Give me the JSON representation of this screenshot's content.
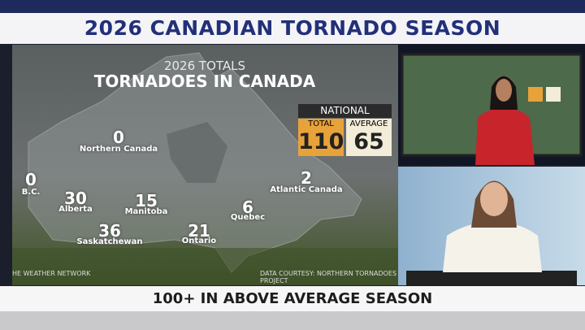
{
  "header": {
    "title": "2026 CANADIAN TORNADO SEASON"
  },
  "graphic": {
    "subtitle": "2026 TOTALS",
    "title": "TORNADOES IN CANADA",
    "national": {
      "label": "NATIONAL",
      "total_label": "TOTAL",
      "total": 110,
      "average_label": "AVERAGE",
      "average": 65
    },
    "regions": [
      {
        "name": "Northern Canada",
        "count": 0
      },
      {
        "name": "B.C.",
        "count": 0
      },
      {
        "name": "Alberta",
        "count": 30
      },
      {
        "name": "Saskatchewan",
        "count": 36
      },
      {
        "name": "Manitoba",
        "count": 15
      },
      {
        "name": "Ontario",
        "count": 21
      },
      {
        "name": "Quebec",
        "count": 6
      },
      {
        "name": "Atlantic Canada",
        "count": 2
      }
    ],
    "footer_left": "HE WEATHER NETWORK",
    "footer_right": "DATA COURTESY: NORTHERN TORNADOES PROJECT"
  },
  "lower_third": {
    "headline": "100+ IN ABOVE AVERAGE SEASON"
  }
}
